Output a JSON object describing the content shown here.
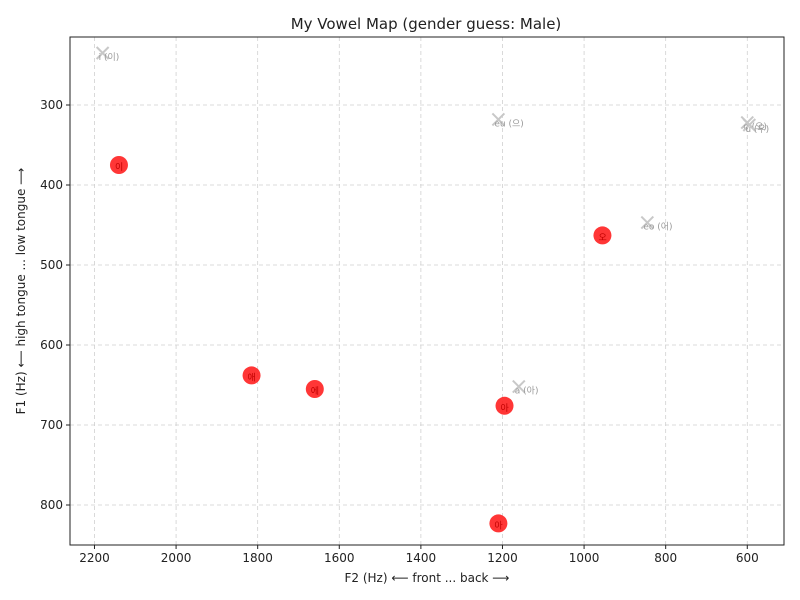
{
  "chart_data": {
    "type": "scatter",
    "title": "My Vowel Map (gender guess: Male)",
    "xlabel": "F2 (Hz) ⟵ front ... back ⟶",
    "ylabel": "F1 (Hz) ⟵ high tongue ... low tongue ⟶",
    "xlim": [
      2260,
      510
    ],
    "ylim": [
      850,
      215
    ],
    "x_inverted": true,
    "y_inverted": true,
    "xticks": [
      2200,
      2000,
      1800,
      1600,
      1400,
      1200,
      1000,
      800,
      600
    ],
    "yticks": [
      300,
      400,
      500,
      600,
      700,
      800
    ],
    "grid": true,
    "reference_vowels": [
      {
        "label": "i (이)",
        "f2": 2180,
        "f1": 235
      },
      {
        "label": "eu (으)",
        "f2": 1210,
        "f1": 318
      },
      {
        "label": "o (오)",
        "f2": 600,
        "f1": 322
      },
      {
        "label": "u (우)",
        "f2": 595,
        "f1": 325
      },
      {
        "label": "eo (어)",
        "f2": 845,
        "f1": 447
      },
      {
        "label": "a (아)",
        "f2": 1160,
        "f1": 652
      }
    ],
    "user_vowels": [
      {
        "label": "이",
        "f2": 2140,
        "f1": 375
      },
      {
        "label": "오",
        "f2": 955,
        "f1": 463
      },
      {
        "label": "애",
        "f2": 1815,
        "f1": 638
      },
      {
        "label": "에",
        "f2": 1660,
        "f1": 655
      },
      {
        "label": "아",
        "f2": 1195,
        "f1": 676
      },
      {
        "label": "아",
        "f2": 1210,
        "f1": 823
      }
    ],
    "colors": {
      "user_marker": "#ff2020",
      "reference_marker": "#c8c8c8",
      "grid": "#d0d0d0"
    }
  }
}
